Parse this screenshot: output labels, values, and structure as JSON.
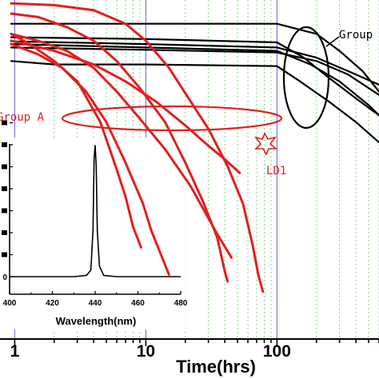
{
  "chart_data": [
    {
      "type": "line",
      "role": "main",
      "xlabel": "Time(hrs)",
      "ylabel": "",
      "x_scale": "log",
      "xlim": [
        0.94,
        600
      ],
      "x_ticks": [
        1,
        10,
        100
      ],
      "x_tick_labels": [
        "1",
        "10",
        "100"
      ],
      "colors": {
        "red": "#e02020",
        "black": "#000000",
        "gridline_blue": "#6f6fd0",
        "gridline_green": "#77cc77"
      },
      "annotations": [
        {
          "text": "Group A",
          "color": "#e02020"
        },
        {
          "text": "Group",
          "color": "#000000"
        },
        {
          "text": "LD1",
          "color": "#e02020"
        }
      ],
      "series": [
        {
          "group": "red",
          "x": [
            0.94,
            1.3,
            2,
            3,
            4.5,
            6,
            7,
            8,
            9.2
          ],
          "y": [
            0.9,
            0.87,
            0.82,
            0.76,
            0.64,
            0.5,
            0.42,
            0.33,
            0.27
          ]
        },
        {
          "group": "red",
          "x": [
            0.94,
            1.5,
            2.5,
            4,
            6,
            9,
            14,
            20,
            27,
            35,
            40,
            42
          ],
          "y": [
            0.96,
            0.95,
            0.92,
            0.88,
            0.82,
            0.74,
            0.64,
            0.52,
            0.41,
            0.3,
            0.2,
            0.17
          ]
        },
        {
          "group": "red",
          "x": [
            0.94,
            2,
            4,
            7,
            10,
            15,
            22,
            30,
            42,
            55,
            65,
            72,
            78
          ],
          "y": [
            0.99,
            0.985,
            0.97,
            0.93,
            0.88,
            0.8,
            0.7,
            0.62,
            0.51,
            0.4,
            0.28,
            0.19,
            0.14
          ]
        },
        {
          "group": "red",
          "x": [
            0.94,
            2,
            4,
            7,
            12,
            20,
            30,
            40,
            52
          ],
          "y": [
            0.88,
            0.85,
            0.81,
            0.76,
            0.7,
            0.63,
            0.57,
            0.53,
            0.49
          ]
        },
        {
          "group": "red",
          "x": [
            0.94,
            1.5,
            2.5,
            4,
            6,
            9,
            14,
            22,
            35,
            45
          ],
          "y": [
            0.9,
            0.88,
            0.85,
            0.8,
            0.73,
            0.65,
            0.56,
            0.45,
            0.31,
            0.24
          ]
        },
        {
          "group": "red",
          "x": [
            0.94,
            1.5,
            2.3,
            3.5,
            5,
            7,
            9.5,
            11,
            13,
            15
          ],
          "y": [
            0.87,
            0.84,
            0.8,
            0.73,
            0.64,
            0.52,
            0.4,
            0.32,
            0.25,
            0.19
          ]
        },
        {
          "group": "black",
          "x": [
            0.94,
            10,
            100,
            200,
            300,
            450,
            600
          ],
          "y": [
            0.93,
            0.93,
            0.93,
            0.9,
            0.85,
            0.79,
            0.73
          ]
        },
        {
          "group": "black",
          "x": [
            0.94,
            10,
            100,
            160,
            250,
            400,
            600
          ],
          "y": [
            0.89,
            0.885,
            0.875,
            0.83,
            0.77,
            0.71,
            0.66
          ]
        },
        {
          "group": "black",
          "x": [
            0.94,
            10,
            100,
            200,
            350,
            600
          ],
          "y": [
            0.878,
            0.87,
            0.86,
            0.83,
            0.79,
            0.75
          ]
        },
        {
          "group": "black",
          "x": [
            0.94,
            10,
            100,
            180,
            300,
            500,
            600
          ],
          "y": [
            0.87,
            0.86,
            0.85,
            0.81,
            0.76,
            0.69,
            0.66
          ]
        },
        {
          "group": "black",
          "x": [
            0.94,
            10,
            100,
            200,
            350,
            600
          ],
          "y": [
            0.86,
            0.853,
            0.845,
            0.82,
            0.78,
            0.72
          ]
        },
        {
          "group": "black",
          "x": [
            0.94,
            2,
            10,
            100,
            150,
            250,
            400,
            600
          ],
          "y": [
            0.82,
            0.81,
            0.81,
            0.805,
            0.76,
            0.7,
            0.64,
            0.58
          ]
        }
      ]
    },
    {
      "type": "line",
      "role": "inset",
      "xlabel": "Wavelength(nm)",
      "ylabel": "",
      "xlim": [
        400,
        480
      ],
      "x_ticks": [
        400,
        420,
        440,
        460,
        480
      ],
      "x_tick_labels": [
        "400",
        "420",
        "440",
        "460",
        "480"
      ],
      "y_tick_labels": [
        "0",
        "",
        "",
        "",
        "",
        "",
        "",
        ""
      ],
      "series": [
        {
          "x": [
            400,
            430,
            436,
            438,
            439,
            439.5,
            440,
            440.5,
            441,
            442,
            444,
            450,
            480
          ],
          "y": [
            0.0,
            0.0,
            0.01,
            0.05,
            0.35,
            0.9,
            1.0,
            0.85,
            0.35,
            0.08,
            0.01,
            0.0,
            0.0
          ]
        }
      ]
    }
  ]
}
